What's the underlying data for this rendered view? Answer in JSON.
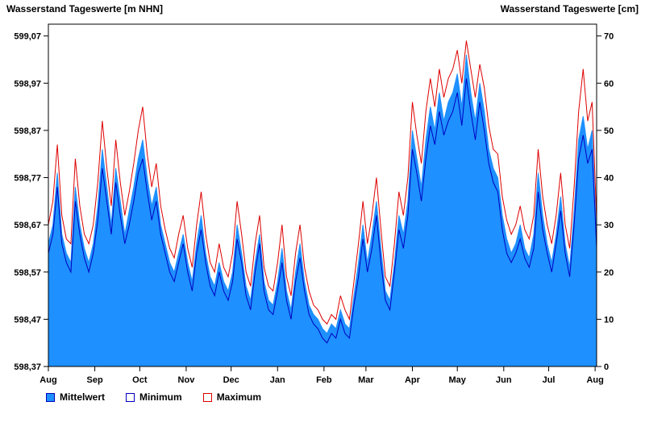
{
  "legend": {
    "items": [
      {
        "label": "Mittelwert",
        "type": "mean"
      },
      {
        "label": "Minimum",
        "type": "min"
      },
      {
        "label": "Maximum",
        "type": "max"
      }
    ]
  },
  "colors": {
    "mean_fill": "#1e90ff",
    "mean_edge": "#1e90ff",
    "min_line": "#0000c0",
    "max_line": "#dd0000",
    "axis": "#000000",
    "background": "#ffffff"
  },
  "chart_data": {
    "type": "area",
    "title_left": "Wasserstand Tageswerte [m NHN]",
    "title_right": "Wasserstand Tageswerte [cm]",
    "xlabel": "",
    "ylabel_left": "m NHN",
    "ylabel_right": "cm",
    "grid": false,
    "legend_position": "bottom",
    "x_tick_labels": [
      "Aug",
      "Sep",
      "Oct",
      "Nov",
      "Dec",
      "Jan",
      "Feb",
      "Mar",
      "Apr",
      "May",
      "Jun",
      "Jul",
      "Aug"
    ],
    "x_tick_days": [
      0,
      31,
      61,
      92,
      122,
      153,
      184,
      212,
      243,
      273,
      304,
      334,
      365
    ],
    "x_range_days": 366,
    "sample_interval_days": 3,
    "y_left_labels": [
      "598,37",
      "598,47",
      "598,57",
      "598,67",
      "598,77",
      "598,87",
      "598,97",
      "599,07"
    ],
    "y_right_labels": [
      "0",
      "10",
      "20",
      "30",
      "40",
      "50",
      "60",
      "70"
    ],
    "y_ticks_cm": [
      0,
      10,
      20,
      30,
      40,
      50,
      60,
      70
    ],
    "y_max_cm": 72.5,
    "gauge_zero_m_nhn": 598.37,
    "series": [
      {
        "name": "Mittelwert",
        "unit": "cm",
        "values": [
          26,
          30,
          41,
          28,
          24,
          22,
          38,
          30,
          25,
          22,
          26,
          34,
          46,
          38,
          30,
          42,
          35,
          28,
          33,
          38,
          44,
          48,
          40,
          34,
          38,
          30,
          26,
          22,
          20,
          24,
          28,
          22,
          18,
          26,
          32,
          24,
          19,
          17,
          22,
          18,
          16,
          20,
          30,
          24,
          17,
          14,
          22,
          28,
          18,
          14,
          13,
          18,
          25,
          16,
          12,
          20,
          26,
          18,
          13,
          11,
          10,
          8,
          7,
          9,
          8,
          12,
          9,
          8,
          15,
          22,
          30,
          22,
          28,
          35,
          25,
          16,
          14,
          22,
          32,
          28,
          35,
          50,
          44,
          38,
          48,
          55,
          50,
          58,
          52,
          56,
          58,
          62,
          55,
          66,
          58,
          52,
          60,
          54,
          46,
          42,
          40,
          32,
          27,
          24,
          26,
          30,
          25,
          23,
          28,
          41,
          32,
          26,
          22,
          28,
          36,
          26,
          21,
          33,
          48,
          53,
          46,
          50,
          27
        ]
      },
      {
        "name": "Minimum",
        "unit": "cm",
        "values": [
          24,
          28,
          38,
          26,
          22,
          20,
          35,
          28,
          23,
          20,
          24,
          31,
          42,
          35,
          28,
          39,
          32,
          26,
          30,
          35,
          41,
          44,
          37,
          31,
          35,
          28,
          24,
          20,
          18,
          22,
          26,
          20,
          16,
          24,
          29,
          22,
          17,
          15,
          20,
          16,
          14,
          18,
          27,
          22,
          15,
          12,
          20,
          26,
          16,
          12,
          11,
          16,
          22,
          14,
          10,
          18,
          23,
          16,
          11,
          9,
          8,
          6,
          5,
          7,
          6,
          10,
          7,
          6,
          13,
          19,
          27,
          20,
          25,
          32,
          22,
          14,
          12,
          20,
          29,
          25,
          32,
          46,
          41,
          35,
          44,
          51,
          47,
          54,
          49,
          52,
          54,
          58,
          51,
          61,
          54,
          48,
          56,
          50,
          43,
          39,
          37,
          29,
          24,
          22,
          24,
          27,
          23,
          21,
          25,
          37,
          29,
          24,
          20,
          26,
          33,
          24,
          19,
          30,
          44,
          49,
          43,
          46,
          25
        ]
      },
      {
        "name": "Maximum",
        "unit": "cm",
        "values": [
          30,
          35,
          47,
          32,
          27,
          26,
          44,
          34,
          28,
          26,
          30,
          39,
          52,
          42,
          34,
          48,
          39,
          32,
          37,
          43,
          50,
          55,
          45,
          38,
          43,
          34,
          29,
          25,
          23,
          28,
          32,
          25,
          21,
          30,
          37,
          28,
          22,
          20,
          26,
          21,
          19,
          24,
          35,
          28,
          20,
          17,
          26,
          32,
          21,
          17,
          16,
          22,
          30,
          19,
          15,
          24,
          30,
          21,
          16,
          13,
          12,
          10,
          9,
          11,
          10,
          15,
          12,
          10,
          18,
          26,
          35,
          26,
          32,
          40,
          29,
          19,
          17,
          26,
          37,
          32,
          40,
          56,
          49,
          43,
          54,
          61,
          55,
          63,
          57,
          61,
          63,
          67,
          60,
          69,
          63,
          57,
          64,
          59,
          51,
          46,
          45,
          36,
          31,
          28,
          30,
          34,
          29,
          27,
          32,
          46,
          36,
          30,
          26,
          32,
          41,
          30,
          25,
          38,
          54,
          63,
          52,
          56,
          31
        ]
      }
    ]
  }
}
